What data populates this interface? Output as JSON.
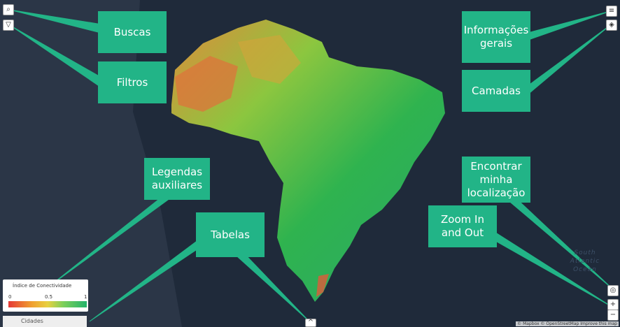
{
  "callouts": [
    {
      "label": "Buscas"
    },
    {
      "label": "Filtros"
    },
    {
      "label": "Informações gerais"
    },
    {
      "label": "Camadas"
    },
    {
      "label": "Legendas auxiliares"
    },
    {
      "label": "Tabelas"
    },
    {
      "label": "Encontrar minha localização"
    },
    {
      "label": "Zoom In and Out"
    }
  ],
  "legend": {
    "title": "Índice de Conectividade",
    "ticks": [
      0,
      0.5,
      1
    ]
  },
  "toolbar": {
    "tab": "Cidades"
  },
  "map": {
    "ocean_label": "South Atlantic Ocean"
  },
  "attribution": "© Mapbox © OpenStreetMap Improve this map"
}
